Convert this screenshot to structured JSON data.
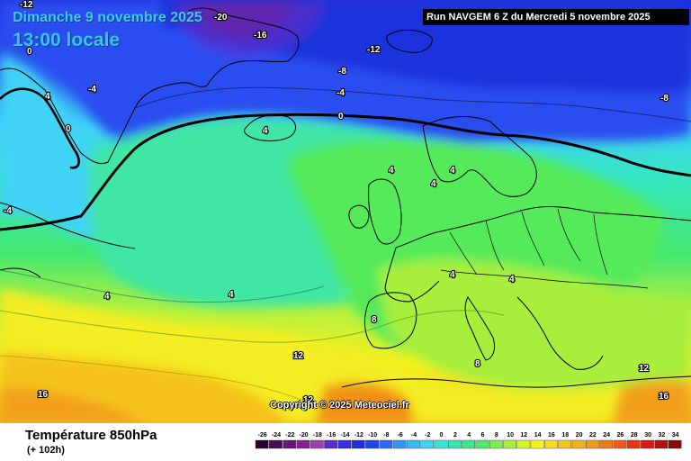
{
  "header": {
    "date": "Dimanche 9 novembre 2025",
    "time": "13:00 locale",
    "run": "Run NAVGEM 6 Z du Mercredi 5 novembre 2025"
  },
  "copyright": "Copyright © 2025 Meteociel.fr",
  "footer": {
    "parameter": "Température 850hPa",
    "lead": "(+ 102h)"
  },
  "colors": {
    "ocean_deep": "#1d2fd8",
    "ocean_blue": "#2a5cf0",
    "cyan": "#3fd3f5",
    "aqua": "#35e6c0",
    "green": "#44e870",
    "lime": "#b8f03c",
    "yellow": "#f6f21e",
    "amber": "#f5c61a",
    "orange": "#f29a1a",
    "purple": "#7a1c6a"
  },
  "isotherm_labels": [
    {
      "id": "m12-top",
      "text": "-12"
    },
    {
      "id": "m20",
      "text": "-20"
    },
    {
      "id": "m16",
      "text": "-16"
    },
    {
      "id": "m12",
      "text": "-12"
    },
    {
      "id": "m8-a",
      "text": "-8"
    },
    {
      "id": "m4-a",
      "text": "-4"
    },
    {
      "id": "m8-b",
      "text": "-8"
    },
    {
      "id": "m4-greenland",
      "text": "-4"
    },
    {
      "id": "z0-main",
      "text": "0"
    },
    {
      "id": "z0-greenland",
      "text": "0"
    },
    {
      "id": "p4-greenland",
      "text": "4"
    },
    {
      "id": "p4-iceland",
      "text": "4"
    },
    {
      "id": "p4-scand-a",
      "text": "4"
    },
    {
      "id": "p4-scand-b",
      "text": "4"
    },
    {
      "id": "p4-scand-c",
      "text": "4"
    },
    {
      "id": "m4-west",
      "text": "-4"
    },
    {
      "id": "m0-west",
      "text": "0"
    },
    {
      "id": "p4-atl-a",
      "text": "4"
    },
    {
      "id": "p4-atl-b",
      "text": "4"
    },
    {
      "id": "p4-eur-a",
      "text": "4"
    },
    {
      "id": "p4-eur-b",
      "text": "4"
    },
    {
      "id": "p8-france",
      "text": "8"
    },
    {
      "id": "p8-italy",
      "text": "8"
    },
    {
      "id": "p12-atl",
      "text": "12"
    },
    {
      "id": "p12-spain",
      "text": "12"
    },
    {
      "id": "p12-aeg",
      "text": "12"
    },
    {
      "id": "p16-atl",
      "text": "16"
    },
    {
      "id": "p16-east",
      "text": "16"
    }
  ],
  "legend": {
    "ticks": [
      "-26",
      "-24",
      "-22",
      "-20",
      "-18",
      "-16",
      "-14",
      "-12",
      "-10",
      "-8",
      "-6",
      "-4",
      "-2",
      "0",
      "2",
      "4",
      "6",
      "8",
      "10",
      "12",
      "14",
      "16",
      "18",
      "20",
      "22",
      "24",
      "26",
      "28",
      "30",
      "32",
      "34"
    ],
    "colors": [
      "#2a0030",
      "#4a0a55",
      "#6a157a",
      "#8a1f9a",
      "#9b3fb5",
      "#5b2bc8",
      "#3a2de0",
      "#1d2fd8",
      "#1f46ee",
      "#2a6cf5",
      "#2f96f8",
      "#36bdf7",
      "#3fd3f5",
      "#38e3d8",
      "#35e6b0",
      "#3fe88a",
      "#52ea6a",
      "#7aee4a",
      "#a8f03a",
      "#d6f228",
      "#f6f21e",
      "#f6dc1c",
      "#f5c61a",
      "#f4ae1a",
      "#f29a1a",
      "#f07c18",
      "#ee5a16",
      "#e83414",
      "#d81a12",
      "#b80f10",
      "#8a0a0c"
    ]
  }
}
